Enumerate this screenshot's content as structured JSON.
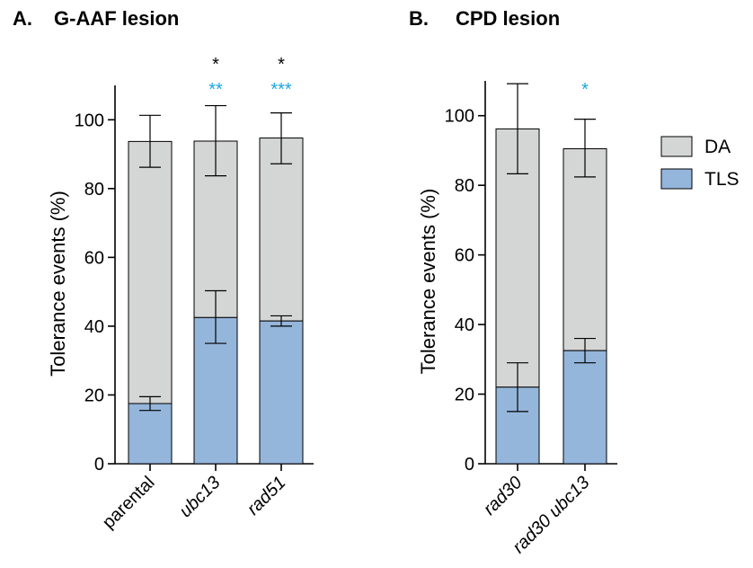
{
  "chart_data": [
    {
      "type": "bar",
      "stacked": true,
      "panel_letter": "A.",
      "title": "G-AAF lesion",
      "ylabel": "Tolerance events (%)",
      "ylim": [
        0,
        110
      ],
      "yticks": [
        0,
        20,
        40,
        60,
        80,
        100
      ],
      "categories": [
        "parental",
        "ubc13",
        "rad51"
      ],
      "category_italic": [
        false,
        true,
        true
      ],
      "series": [
        {
          "name": "TLS",
          "color": "#95b6db",
          "values": [
            17.5,
            42.5,
            41.5
          ],
          "err_low": [
            15.5,
            35.0,
            40.0
          ],
          "err_high": [
            19.5,
            50.3,
            43.0
          ]
        },
        {
          "name": "DA",
          "color": "#d4d6d5",
          "values": [
            76.2,
            51.3,
            53.2
          ],
          "err_low": [
            86.2,
            83.7,
            87.2
          ],
          "err_high": [
            101.3,
            104.1,
            102.0
          ]
        }
      ],
      "significance": [
        {
          "category": "ubc13",
          "black": "*",
          "blue": "**"
        },
        {
          "category": "rad51",
          "black": "*",
          "blue": "***"
        }
      ]
    },
    {
      "type": "bar",
      "stacked": true,
      "panel_letter": "B.",
      "title": "CPD lesion",
      "ylabel": "Tolerance events (%)",
      "ylim": [
        0,
        110
      ],
      "yticks": [
        0,
        20,
        40,
        60,
        80,
        100
      ],
      "categories": [
        "rad30",
        "rad30 ubc13"
      ],
      "category_italic": [
        true,
        true
      ],
      "series": [
        {
          "name": "TLS",
          "color": "#95b6db",
          "values": [
            22.0,
            32.5
          ],
          "err_low": [
            15.0,
            29.0
          ],
          "err_high": [
            29.0,
            36.0
          ]
        },
        {
          "name": "DA",
          "color": "#d4d6d5",
          "values": [
            74.2,
            58.0
          ],
          "err_low": [
            83.3,
            82.4
          ],
          "err_high": [
            109.2,
            99.0
          ]
        }
      ],
      "significance": [
        {
          "category": "rad30 ubc13",
          "black": "",
          "blue": "*"
        }
      ]
    }
  ],
  "legend": {
    "position": "right",
    "items": [
      {
        "label": "DA",
        "color": "#d4d6d5"
      },
      {
        "label": "TLS",
        "color": "#95b6db"
      }
    ]
  },
  "colors": {
    "sig_black": "#000000",
    "sig_blue": "#1aa6df"
  }
}
